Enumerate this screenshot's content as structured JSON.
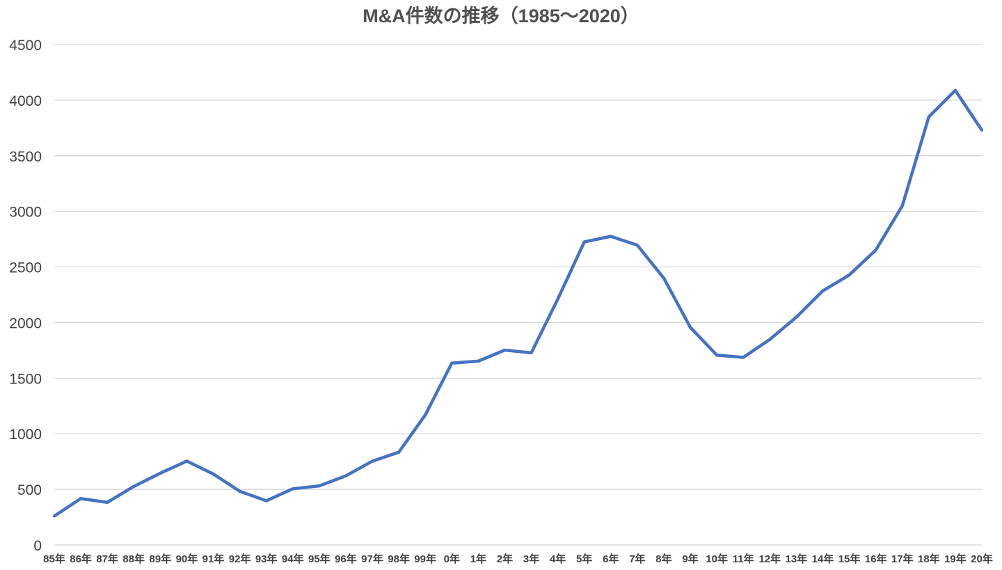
{
  "chart_data": {
    "type": "line",
    "title": "M&A件数の推移（1985～2020）",
    "xlabel": "",
    "ylabel": "",
    "ylim": [
      0,
      4500
    ],
    "yticks": [
      0,
      500,
      1000,
      1500,
      2000,
      2500,
      3000,
      3500,
      4000,
      4500
    ],
    "grid": true,
    "legend": "none",
    "line_color": "#4472C4",
    "categories": [
      "85年",
      "86年",
      "87年",
      "88年",
      "89年",
      "90年",
      "91年",
      "92年",
      "93年",
      "94年",
      "95年",
      "96年",
      "97年",
      "98年",
      "99年",
      "0年",
      "1年",
      "2年",
      "3年",
      "4年",
      "5年",
      "6年",
      "7年",
      "8年",
      "9年",
      "10年",
      "11年",
      "12年",
      "13年",
      "14年",
      "15年",
      "16年",
      "17年",
      "18年",
      "19年",
      "20年"
    ],
    "series": [
      {
        "values": [
          260,
          417,
          383,
          526,
          645,
          754,
          638,
          483,
          397,
          505,
          531,
          621,
          753,
          834,
          1169,
          1635,
          1653,
          1752,
          1728,
          2211,
          2725,
          2775,
          2696,
          2399,
          1957,
          1707,
          1687,
          1848,
          2048,
          2285,
          2428,
          2652,
          3050,
          3850,
          4088,
          3730
        ]
      }
    ]
  }
}
